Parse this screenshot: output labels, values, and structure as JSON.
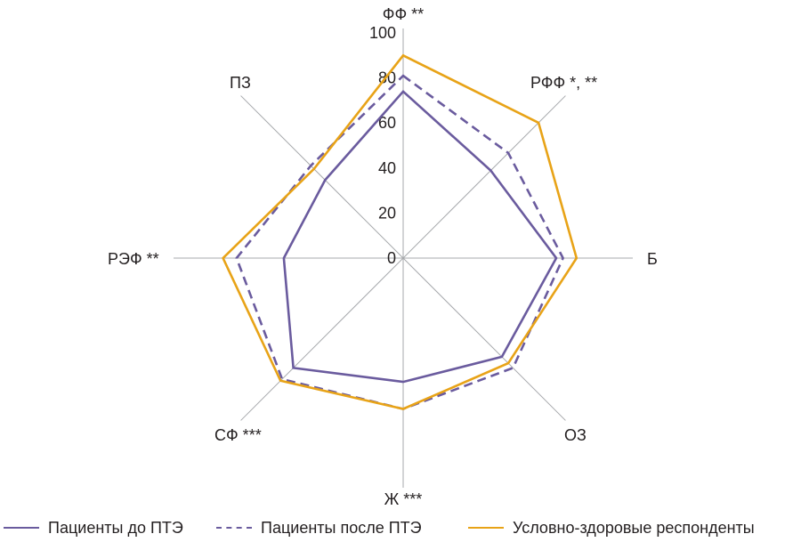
{
  "chart_data": {
    "type": "radar",
    "axes": [
      "ФФ **",
      "РФФ *, **",
      "Б",
      "ОЗ",
      "Ж ***",
      "СФ ***",
      "РЭФ **",
      "ПЗ"
    ],
    "rlim": [
      0,
      100
    ],
    "ticks": [
      "0",
      "20",
      "40",
      "60",
      "80",
      "100"
    ],
    "tick_values": [
      0,
      20,
      40,
      60,
      80,
      100
    ],
    "grid": true,
    "legend_position": "bottom",
    "series": [
      {
        "name": "Пациенты до ПТЭ",
        "style": "solid",
        "color": "#6a5b9e",
        "values": [
          74,
          55,
          68,
          62,
          55,
          69,
          53,
          49
        ]
      },
      {
        "name": "Пациенты после ПТЭ",
        "style": "dashed",
        "color": "#6a5b9e",
        "values": [
          81,
          66,
          71,
          69,
          67,
          76,
          74,
          58
        ]
      },
      {
        "name": "Условно-здоровые респонденты",
        "style": "solid",
        "color": "#e8a317",
        "values": [
          90,
          85,
          77,
          66,
          67,
          77,
          80,
          56
        ]
      }
    ]
  }
}
